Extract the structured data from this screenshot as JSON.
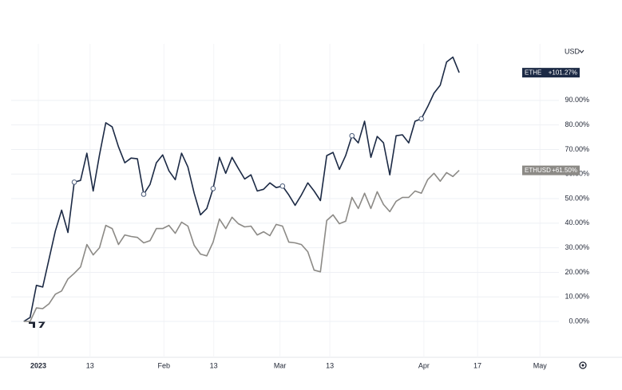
{
  "chart_data": {
    "type": "line",
    "axis_unit": "USD",
    "series": [
      {
        "name": "ETHE",
        "color": "#1c2a45",
        "last_label": "+101.27%",
        "values": [
          0,
          1.6,
          14.7,
          14.0,
          25.4,
          36.8,
          45.3,
          36.2,
          56.7,
          57.4,
          68.5,
          53.1,
          67.8,
          80.9,
          79.2,
          71.1,
          64.6,
          66.5,
          66.2,
          51.8,
          55.8,
          64.6,
          67.8,
          61.3,
          57.7,
          68.5,
          62.9,
          52.2,
          43.4,
          46.0,
          54.1,
          66.8,
          60.3,
          66.8,
          62.3,
          58.0,
          59.7,
          53.1,
          53.8,
          56.4,
          54.5,
          55.1,
          51.5,
          47.3,
          51.5,
          56.4,
          53.1,
          49.2,
          67.5,
          68.8,
          61.9,
          67.5,
          75.6,
          72.7,
          81.5,
          66.8,
          75.3,
          72.7,
          59.7,
          75.6,
          76.0,
          72.7,
          81.5,
          82.5,
          87.4,
          92.9,
          96.2,
          105.6,
          107.6,
          101.27
        ]
      },
      {
        "name": "ETHUSD",
        "color": "#8c8a86",
        "last_label": "+61.50%",
        "values": [
          0,
          0,
          5.5,
          5.2,
          7.2,
          11.1,
          12.4,
          17.3,
          19.6,
          22.2,
          31.3,
          27.1,
          30.0,
          39.1,
          37.8,
          31.3,
          35.2,
          34.6,
          34.2,
          32.0,
          32.9,
          37.8,
          37.8,
          39.1,
          35.9,
          40.4,
          38.8,
          31.0,
          27.4,
          26.7,
          32.3,
          41.7,
          37.8,
          42.4,
          39.8,
          38.5,
          38.8,
          35.2,
          36.5,
          34.9,
          39.5,
          38.8,
          32.3,
          32.0,
          31.3,
          28.4,
          20.9,
          20.2,
          41.1,
          43.4,
          39.8,
          40.8,
          50.5,
          46.0,
          52.2,
          46.0,
          52.8,
          47.6,
          44.7,
          48.9,
          50.5,
          50.5,
          53.1,
          52.2,
          57.7,
          60.3,
          57.1,
          60.6,
          59.0,
          61.5
        ]
      }
    ],
    "xlim": [
      -2,
      84.8
    ],
    "xticks": [
      {
        "value": 2.3,
        "label": "2023"
      },
      {
        "value": 10.5,
        "label": "13"
      },
      {
        "value": 22.2,
        "label": "Feb"
      },
      {
        "value": 30.1,
        "label": "13"
      },
      {
        "value": 40.6,
        "label": "Mar"
      },
      {
        "value": 48.5,
        "label": "13"
      },
      {
        "value": 63.4,
        "label": "Apr"
      },
      {
        "value": 71.9,
        "label": "17"
      },
      {
        "value": 81.8,
        "label": "May"
      }
    ],
    "ylim": [
      -12,
      113
    ],
    "yticks": [
      {
        "value": 0,
        "label": "0.00%"
      },
      {
        "value": 10,
        "label": "10.00%"
      },
      {
        "value": 20,
        "label": "20.00%"
      },
      {
        "value": 30,
        "label": "30.00%"
      },
      {
        "value": 40,
        "label": "40.00%"
      },
      {
        "value": 50,
        "label": "50.00%"
      },
      {
        "value": 60,
        "label": "60.00%"
      },
      {
        "value": 70,
        "label": "70.00%"
      },
      {
        "value": 80,
        "label": "80.00%"
      },
      {
        "value": 90,
        "label": "90.00%"
      }
    ],
    "grid": true
  }
}
